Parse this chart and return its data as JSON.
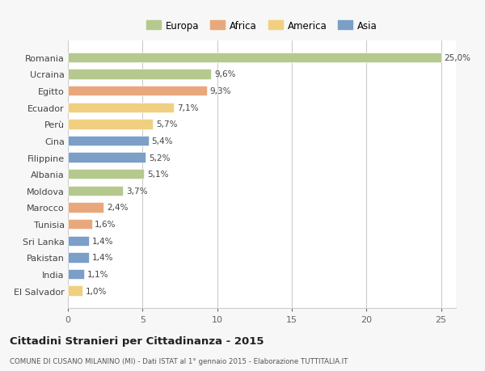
{
  "countries": [
    "Romania",
    "Ucraina",
    "Egitto",
    "Ecuador",
    "Perù",
    "Cina",
    "Filippine",
    "Albania",
    "Moldova",
    "Marocco",
    "Tunisia",
    "Sri Lanka",
    "Pakistan",
    "India",
    "El Salvador"
  ],
  "values": [
    25.0,
    9.6,
    9.3,
    7.1,
    5.7,
    5.4,
    5.2,
    5.1,
    3.7,
    2.4,
    1.6,
    1.4,
    1.4,
    1.1,
    1.0
  ],
  "labels": [
    "25,0%",
    "9,6%",
    "9,3%",
    "7,1%",
    "5,7%",
    "5,4%",
    "5,2%",
    "5,1%",
    "3,7%",
    "2,4%",
    "1,6%",
    "1,4%",
    "1,4%",
    "1,1%",
    "1,0%"
  ],
  "colors": [
    "#b5c98e",
    "#b5c98e",
    "#e8a87c",
    "#f0d080",
    "#f0d080",
    "#7b9fc7",
    "#7b9fc7",
    "#b5c98e",
    "#b5c98e",
    "#e8a87c",
    "#e8a87c",
    "#7b9fc7",
    "#7b9fc7",
    "#7b9fc7",
    "#f0d080"
  ],
  "legend": {
    "labels": [
      "Europa",
      "Africa",
      "America",
      "Asia"
    ],
    "colors": [
      "#b5c98e",
      "#e8a87c",
      "#f0d080",
      "#7b9fc7"
    ]
  },
  "title": "Cittadini Stranieri per Cittadinanza - 2015",
  "subtitle": "COMUNE DI CUSANO MILANINO (MI) - Dati ISTAT al 1° gennaio 2015 - Elaborazione TUTTITALIA.IT",
  "xlim": [
    0,
    26
  ],
  "xticks": [
    0,
    5,
    10,
    15,
    20,
    25
  ],
  "background_color": "#f7f7f7",
  "plot_background": "#ffffff",
  "grid_color": "#cccccc"
}
